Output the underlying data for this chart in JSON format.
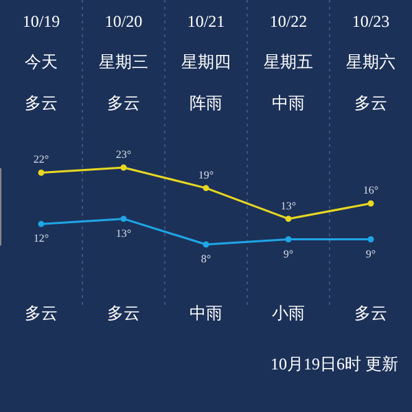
{
  "chart_data": {
    "type": "line",
    "categories": [
      "10/19",
      "10/20",
      "10/21",
      "10/22",
      "10/23"
    ],
    "series": [
      {
        "color": "#e8d820",
        "values": [
          22,
          23,
          19,
          13,
          16
        ],
        "value_labels": [
          "22°",
          "23°",
          "19°",
          "13°",
          "16°"
        ]
      },
      {
        "color": "#1ea6e6",
        "values": [
          12,
          13,
          8,
          9,
          9
        ],
        "value_labels": [
          "12°",
          "13°",
          "8°",
          "9°",
          "9°"
        ]
      }
    ],
    "annotations": [
      "今天",
      "星期三",
      "星期四",
      "星期五",
      "星期六",
      "多云",
      "多云",
      "阵雨",
      "中雨",
      "多云",
      "多云",
      "多云",
      "中雨",
      "小雨",
      "多云",
      "10月19日6时 更新"
    ],
    "grid": "x",
    "marker": "circle",
    "line_style": "solid"
  }
}
